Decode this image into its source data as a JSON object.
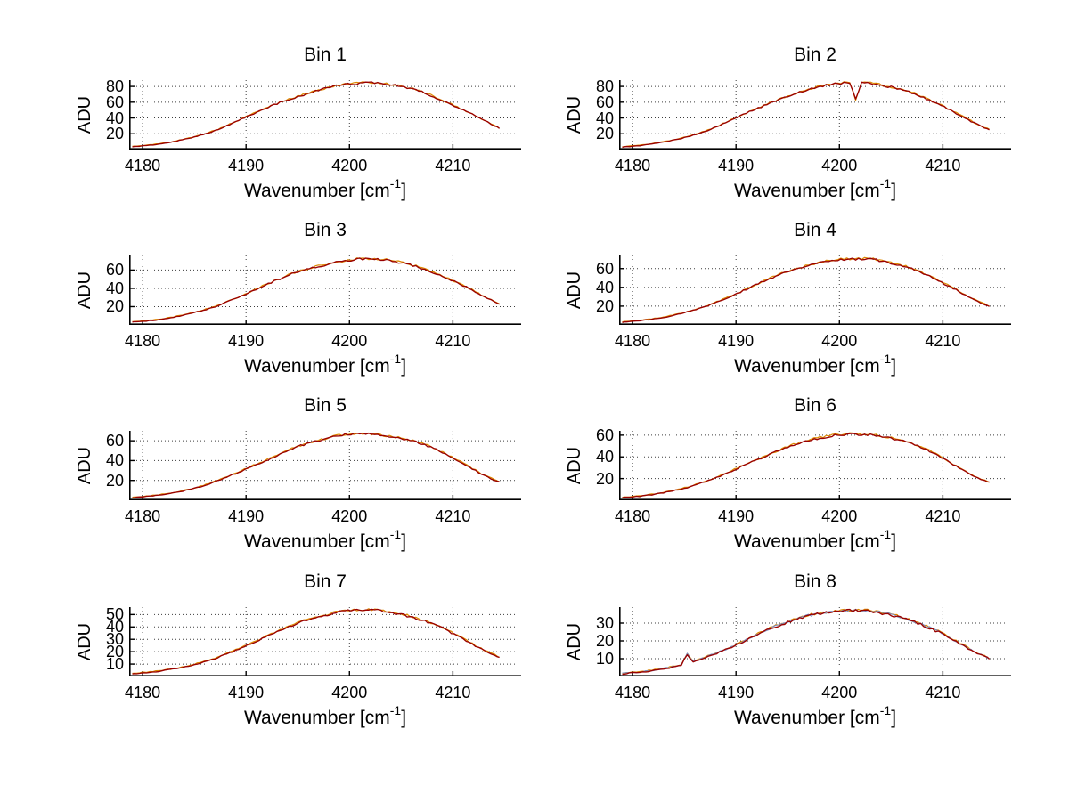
{
  "figure": {
    "background": "#ffffff",
    "text_color": "#000000",
    "axis_color": "#000000",
    "grid_color": "#3c3c3c",
    "line_colors": {
      "primary": "#990000",
      "secondary": "#dd8800",
      "tertiary": "#7788bb"
    }
  },
  "chart_data": [
    {
      "type": "line",
      "title": "Bin 1",
      "grid_position": {
        "row": 1,
        "col": 1
      },
      "xlabel": "Wavenumber [cm⁻¹]",
      "xlabel_base": "Wavenumber [cm",
      "xlabel_sup": "-1",
      "xlabel_end": "]",
      "ylabel": "ADU",
      "grid": true,
      "x_ticks": [
        4180,
        4190,
        4200,
        4210
      ],
      "xlim": [
        4178.7,
        4216.6
      ],
      "y_ticks": [
        20,
        40,
        60,
        80
      ],
      "ylim": [
        0,
        88
      ],
      "x": [
        4179,
        4181,
        4183,
        4185,
        4187,
        4189,
        4191,
        4193,
        4195,
        4197,
        4199,
        4201,
        4203,
        4205,
        4207,
        4209,
        4211,
        4213,
        4214.5
      ],
      "y": [
        3.5,
        6,
        10,
        16,
        24,
        35,
        47,
        58,
        67,
        75,
        81,
        84,
        84,
        80,
        73,
        62,
        50,
        37,
        27
      ],
      "spikes": [],
      "layers": [
        "secondary",
        "primary"
      ]
    },
    {
      "type": "line",
      "title": "Bin 2",
      "grid_position": {
        "row": 1,
        "col": 2
      },
      "xlabel": "Wavenumber [cm⁻¹]",
      "xlabel_base": "Wavenumber [cm",
      "xlabel_sup": "-1",
      "xlabel_end": "]",
      "ylabel": "ADU",
      "grid": true,
      "x_ticks": [
        4180,
        4190,
        4200,
        4210
      ],
      "xlim": [
        4178.7,
        4216.6
      ],
      "y_ticks": [
        20,
        40,
        60,
        80
      ],
      "ylim": [
        0,
        88
      ],
      "x": [
        4179,
        4181,
        4183,
        4185,
        4187,
        4189,
        4191,
        4193,
        4195,
        4197,
        4199,
        4201,
        4203,
        4205,
        4207,
        4209,
        4211,
        4213,
        4214.5
      ],
      "y": [
        3,
        5.5,
        9.5,
        15,
        23,
        34,
        46,
        57,
        67,
        76,
        82,
        85,
        84,
        79,
        72,
        61,
        48,
        34,
        25
      ],
      "spikes": [
        {
          "x": 4201.6,
          "y": 63
        }
      ],
      "layers": [
        "secondary",
        "primary"
      ]
    },
    {
      "type": "line",
      "title": "Bin 3",
      "grid_position": {
        "row": 2,
        "col": 1
      },
      "xlabel": "Wavenumber [cm⁻¹]",
      "xlabel_base": "Wavenumber [cm",
      "xlabel_sup": "-1",
      "xlabel_end": "]",
      "ylabel": "ADU",
      "grid": true,
      "x_ticks": [
        4180,
        4190,
        4200,
        4210
      ],
      "xlim": [
        4178.7,
        4216.6
      ],
      "y_ticks": [
        20,
        40,
        60
      ],
      "ylim": [
        0,
        76
      ],
      "x": [
        4179,
        4181,
        4183,
        4185,
        4187,
        4189,
        4191,
        4193,
        4195,
        4197,
        4199,
        4201,
        4203,
        4205,
        4207,
        4209,
        4211,
        4213,
        4214.5
      ],
      "y": [
        3,
        5,
        8.5,
        13.5,
        20,
        29,
        39,
        49,
        58,
        64,
        69,
        72,
        71.5,
        68,
        62,
        53,
        43,
        31,
        23
      ],
      "spikes": [],
      "layers": [
        "secondary",
        "primary"
      ]
    },
    {
      "type": "line",
      "title": "Bin 4",
      "grid_position": {
        "row": 2,
        "col": 2
      },
      "xlabel": "Wavenumber [cm⁻¹]",
      "xlabel_base": "Wavenumber [cm",
      "xlabel_sup": "-1",
      "xlabel_end": "]",
      "ylabel": "ADU",
      "grid": true,
      "x_ticks": [
        4180,
        4190,
        4200,
        4210
      ],
      "xlim": [
        4178.7,
        4216.6
      ],
      "y_ticks": [
        20,
        40,
        60
      ],
      "ylim": [
        0,
        74
      ],
      "x": [
        4179,
        4181,
        4183,
        4185,
        4187,
        4189,
        4191,
        4193,
        4195,
        4197,
        4199,
        4201,
        4203,
        4205,
        4207,
        4209,
        4211,
        4213,
        4214.5
      ],
      "y": [
        2.8,
        4.8,
        8,
        13,
        19.5,
        28,
        38,
        48,
        57,
        63,
        68,
        70,
        70,
        66,
        60,
        50,
        39,
        27,
        20
      ],
      "spikes": [],
      "layers": [
        "secondary",
        "primary"
      ]
    },
    {
      "type": "line",
      "title": "Bin 5",
      "grid_position": {
        "row": 3,
        "col": 1
      },
      "xlabel": "Wavenumber [cm⁻¹]",
      "xlabel_base": "Wavenumber [cm",
      "xlabel_sup": "-1",
      "xlabel_end": "]",
      "ylabel": "ADU",
      "grid": true,
      "x_ticks": [
        4180,
        4190,
        4200,
        4210
      ],
      "xlim": [
        4178.7,
        4216.6
      ],
      "y_ticks": [
        20,
        40,
        60
      ],
      "ylim": [
        0,
        70
      ],
      "x": [
        4179,
        4181,
        4183,
        4185,
        4187,
        4189,
        4191,
        4193,
        4195,
        4197,
        4199,
        4201,
        4203,
        4205,
        4207,
        4209,
        4211,
        4213,
        4214.5
      ],
      "y": [
        2.6,
        4.5,
        7.5,
        12,
        18.5,
        27,
        36,
        45,
        54,
        60,
        65,
        67,
        65.5,
        62,
        57,
        48,
        37,
        25,
        18.5
      ],
      "spikes": [],
      "layers": [
        "secondary",
        "primary"
      ]
    },
    {
      "type": "line",
      "title": "Bin 6",
      "grid_position": {
        "row": 3,
        "col": 2
      },
      "xlabel": "Wavenumber [cm⁻¹]",
      "xlabel_base": "Wavenumber [cm",
      "xlabel_sup": "-1",
      "xlabel_end": "]",
      "ylabel": "ADU",
      "grid": true,
      "x_ticks": [
        4180,
        4190,
        4200,
        4210
      ],
      "xlim": [
        4178.7,
        4216.6
      ],
      "y_ticks": [
        20,
        40,
        60
      ],
      "ylim": [
        0,
        64
      ],
      "x": [
        4179,
        4181,
        4183,
        4185,
        4187,
        4189,
        4191,
        4193,
        4195,
        4197,
        4199,
        4201,
        4203,
        4205,
        4207,
        4209,
        4211,
        4213,
        4214.5
      ],
      "y": [
        2.4,
        4,
        7,
        11,
        17,
        24.5,
        33,
        41,
        49,
        55,
        59,
        61,
        60,
        57,
        52,
        44,
        33,
        22,
        16.5
      ],
      "spikes": [],
      "layers": [
        "secondary",
        "primary"
      ]
    },
    {
      "type": "line",
      "title": "Bin 7",
      "grid_position": {
        "row": 4,
        "col": 1
      },
      "xlabel": "Wavenumber [cm⁻¹]",
      "xlabel_base": "Wavenumber [cm",
      "xlabel_sup": "-1",
      "xlabel_end": "]",
      "ylabel": "ADU",
      "grid": true,
      "x_ticks": [
        4180,
        4190,
        4200,
        4210
      ],
      "xlim": [
        4178.7,
        4216.6
      ],
      "y_ticks": [
        10,
        20,
        30,
        40,
        50
      ],
      "ylim": [
        0,
        56
      ],
      "x": [
        4179,
        4181,
        4183,
        4185,
        4187,
        4189,
        4191,
        4193,
        4195,
        4197,
        4199,
        4201,
        4203,
        4205,
        4207,
        4209,
        4211,
        4213,
        4214.5
      ],
      "y": [
        2.2,
        3.6,
        6,
        9.5,
        14.5,
        21,
        28.5,
        36,
        43,
        48,
        52,
        53.5,
        53,
        50,
        45.5,
        39,
        30,
        21,
        15.5
      ],
      "spikes": [],
      "layers": [
        "secondary",
        "primary"
      ]
    },
    {
      "type": "line",
      "title": "Bin 8",
      "grid_position": {
        "row": 4,
        "col": 2
      },
      "xlabel": "Wavenumber [cm⁻¹]",
      "xlabel_base": "Wavenumber [cm",
      "xlabel_sup": "-1",
      "xlabel_end": "]",
      "ylabel": "ADU",
      "grid": true,
      "x_ticks": [
        4180,
        4190,
        4200,
        4210
      ],
      "xlim": [
        4178.7,
        4216.6
      ],
      "y_ticks": [
        10,
        20,
        30
      ],
      "ylim": [
        0,
        39
      ],
      "x": [
        4179,
        4181,
        4183,
        4185,
        4187,
        4189,
        4191,
        4193,
        4195,
        4197,
        4199,
        4201,
        4203,
        4205,
        4207,
        4209,
        4211,
        4213,
        4214.5
      ],
      "y": [
        1.5,
        2.5,
        4.2,
        6.8,
        10.5,
        15,
        20.5,
        26,
        30.5,
        34,
        36,
        37,
        36.5,
        34.5,
        31,
        26.5,
        20.5,
        14,
        10
      ],
      "spikes": [
        {
          "x": 4185.4,
          "y": 12.5
        }
      ],
      "layers": [
        "secondary",
        "tertiary",
        "primary"
      ]
    }
  ]
}
